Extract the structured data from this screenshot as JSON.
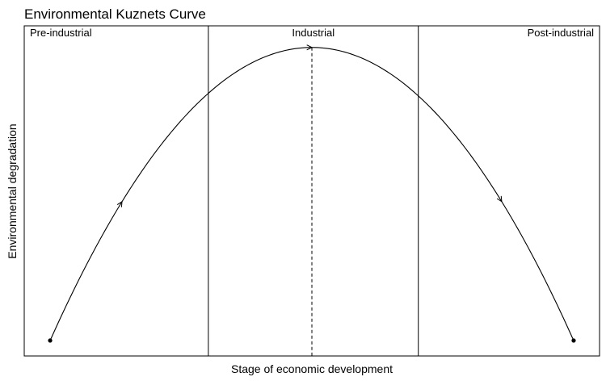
{
  "chart_data": {
    "type": "line",
    "title": "Environmental Kuznets Curve",
    "xlabel": "Stage of economic development",
    "ylabel": "Environmental degradation",
    "regions": [
      {
        "label": "Pre-industrial",
        "x_start": 0.0,
        "x_end": 0.32,
        "label_align": "left"
      },
      {
        "label": "Industrial",
        "x_start": 0.32,
        "x_end": 0.685,
        "label_align": "center"
      },
      {
        "label": "Post-industrial",
        "x_start": 0.685,
        "x_end": 1.0,
        "label_align": "right"
      }
    ],
    "peak": {
      "x": 0.5,
      "y": 1.0,
      "line_style": "dashed"
    },
    "endpoints": [
      {
        "x": 0.045,
        "y": 0.05
      },
      {
        "x": 0.955,
        "y": 0.05
      }
    ],
    "direction_arrows": [
      {
        "x": 0.17
      },
      {
        "x": 0.5
      },
      {
        "x": 0.83
      }
    ],
    "xlim": [
      0,
      1
    ],
    "ylim": [
      0,
      1.07
    ],
    "grid": false,
    "legend": "none",
    "line_color": "#000000"
  }
}
